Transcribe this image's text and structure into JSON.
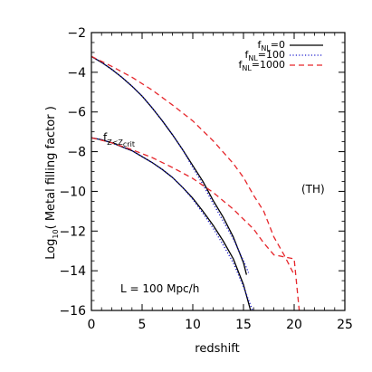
{
  "chart_data": {
    "type": "line",
    "title": "",
    "xlabel": "redshift",
    "ylabel_prefix": "Log",
    "ylabel_sub": "10",
    "ylabel_suffix": "( Metal filling factor )",
    "xlim": [
      0,
      25
    ],
    "ylim": [
      -16,
      -2
    ],
    "xticks": [
      0,
      5,
      10,
      15,
      20,
      25
    ],
    "yticks": [
      -16,
      -14,
      -12,
      -10,
      -8,
      -6,
      -4,
      -2
    ],
    "grid": false,
    "legend_position": "top-right",
    "legend": [
      {
        "prefix": "f",
        "sub": "NL",
        "value": "=0",
        "color": "#000000",
        "dash": "solid"
      },
      {
        "prefix": "f",
        "sub": "NL",
        "value": "=100",
        "color": "#1a1acc",
        "dash": "dotted"
      },
      {
        "prefix": "f",
        "sub": "NL",
        "value": "=1000",
        "color": "#e6262b",
        "dash": "dashed"
      }
    ],
    "annotations": {
      "upper_group": "",
      "lower_group_prefix": "f",
      "lower_group_sub": "Z<Z",
      "lower_group_subsub": "crit",
      "model": "(TH)",
      "box": "L = 100 Mpc/h"
    },
    "series": [
      {
        "group": "upper",
        "name": "fNL=0",
        "color": "#000000",
        "dash": "solid",
        "x": [
          0,
          1,
          2,
          3,
          4,
          5,
          6,
          7,
          8,
          9,
          10,
          11,
          12,
          13,
          14,
          15,
          15.3
        ],
        "y": [
          -3.2,
          -3.5,
          -3.85,
          -4.25,
          -4.7,
          -5.2,
          -5.8,
          -6.45,
          -7.15,
          -7.9,
          -8.7,
          -9.5,
          -10.45,
          -11.3,
          -12.3,
          -13.6,
          -14.2
        ]
      },
      {
        "group": "upper",
        "name": "fNL=100",
        "color": "#1a1acc",
        "dash": "dotted",
        "x": [
          0,
          1,
          2,
          3,
          4,
          5,
          6,
          7,
          8,
          9,
          10,
          11,
          12,
          13,
          14,
          15,
          15.5
        ],
        "y": [
          -3.2,
          -3.5,
          -3.85,
          -4.25,
          -4.7,
          -5.2,
          -5.8,
          -6.45,
          -7.15,
          -7.9,
          -8.8,
          -9.65,
          -10.6,
          -11.5,
          -12.4,
          -13.5,
          -14.1
        ]
      },
      {
        "group": "upper",
        "name": "fNL=1000",
        "color": "#e6262b",
        "dash": "dashed",
        "x": [
          0,
          2,
          4,
          6,
          8,
          10,
          12,
          14,
          15,
          16,
          17,
          18,
          19,
          20
        ],
        "y": [
          -3.2,
          -3.7,
          -4.25,
          -4.9,
          -5.65,
          -6.45,
          -7.45,
          -8.6,
          -9.3,
          -10.2,
          -11.0,
          -12.3,
          -13.2,
          -14.2
        ]
      },
      {
        "group": "lower",
        "name": "fNL=0",
        "color": "#000000",
        "dash": "solid",
        "x": [
          0,
          1,
          2,
          3,
          4,
          5,
          6,
          7,
          8,
          9,
          10,
          11,
          12,
          13,
          14,
          15,
          15.7
        ],
        "y": [
          -7.3,
          -7.4,
          -7.55,
          -7.75,
          -7.95,
          -8.25,
          -8.55,
          -8.9,
          -9.3,
          -9.8,
          -10.35,
          -11.0,
          -11.7,
          -12.5,
          -13.4,
          -14.7,
          -16.0
        ]
      },
      {
        "group": "lower",
        "name": "fNL=100",
        "color": "#1a1acc",
        "dash": "dotted",
        "x": [
          0,
          1,
          2,
          3,
          4,
          5,
          6,
          7,
          8,
          9,
          10,
          11,
          12,
          13,
          14,
          15,
          15.9
        ],
        "y": [
          -7.3,
          -7.4,
          -7.55,
          -7.75,
          -7.95,
          -8.25,
          -8.55,
          -8.9,
          -9.3,
          -9.8,
          -10.4,
          -11.1,
          -11.85,
          -12.7,
          -13.6,
          -14.8,
          -16.0
        ]
      },
      {
        "group": "lower",
        "name": "fNL=1000",
        "color": "#e6262b",
        "dash": "dashed",
        "x": [
          0,
          2,
          4,
          6,
          8,
          10,
          12,
          14,
          16,
          17,
          18,
          19,
          20,
          20.5
        ],
        "y": [
          -7.3,
          -7.55,
          -7.9,
          -8.3,
          -8.8,
          -9.35,
          -10.05,
          -10.9,
          -11.9,
          -12.6,
          -13.2,
          -13.3,
          -13.4,
          -16.0
        ]
      }
    ]
  }
}
